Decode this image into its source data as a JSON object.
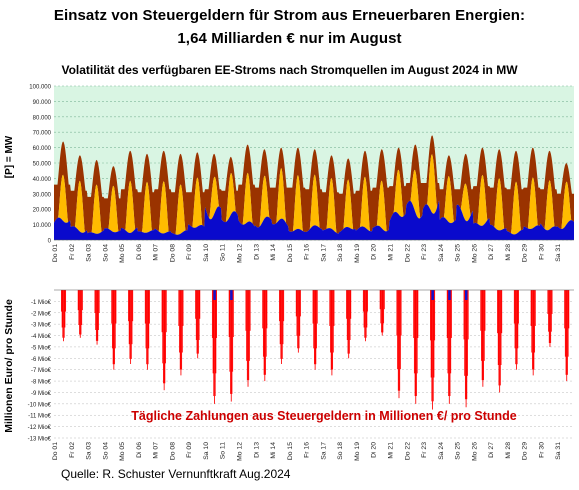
{
  "header": {
    "title_line1": "Einsatz von Steuergeldern für Strom aus Erneuerbaren Energien:",
    "title_line2": "1,64 Milliarden € nur im August"
  },
  "source": "Quelle: R. Schuster Vernunftkraft Aug.2024",
  "chart_data": [
    {
      "type": "area",
      "title": "Volatilität des verfügbaren EE-Stroms nach Stromquellen im August 2024 in MW",
      "ylabel": "[P] = MW",
      "ylim": [
        0,
        100000
      ],
      "yticks": [
        "0",
        "10.000",
        "20.000",
        "30.000",
        "40.000",
        "50.000",
        "60.000",
        "70.000",
        "80.000",
        "90.000",
        "100.000"
      ],
      "grid": true,
      "colors": {
        "background": "#d9f5e3",
        "wind": "#0a0acc",
        "solar": "#ffbb00",
        "other": "#9a3300"
      },
      "x": [
        "Do 01",
        "Fr 02",
        "Sa 03",
        "So 04",
        "Mo 05",
        "Di 06",
        "Mi 07",
        "Do 08",
        "Fr 09",
        "Sa 10",
        "So 11",
        "Mo 12",
        "Di 13",
        "Mi 14",
        "Do 15",
        "Fr 16",
        "Sa 17",
        "So 18",
        "Mo 19",
        "Di 20",
        "Mi 21",
        "Do 22",
        "Fr 23",
        "Sa 24",
        "So 25",
        "Mo 26",
        "Di 27",
        "Mi 28",
        "Do 29",
        "Fr 30",
        "Sa 31"
      ],
      "series": [
        {
          "values_daily_wind_MW": [
            14000,
            9000,
            6000,
            7000,
            9000,
            6000,
            7000,
            6000,
            10000,
            26000,
            17000,
            14000,
            16000,
            13000,
            9000,
            9000,
            8000,
            10000,
            8000,
            11000,
            19000,
            24000,
            29000,
            14000,
            24000,
            13000,
            9000,
            7000,
            9000,
            11000,
            12000
          ]
        },
        {
          "values_daily_solar_peak_MW": [
            30000,
            33000,
            32000,
            30000,
            34000,
            33000,
            34000,
            32000,
            32000,
            24000,
            27000,
            32000,
            28000,
            33000,
            35000,
            33000,
            33000,
            31000,
            33000,
            31000,
            29000,
            27000,
            38000,
            30000,
            24000,
            33000,
            34000,
            34000,
            33000,
            32000,
            28000
          ]
        },
        {
          "values_daily_peak_total_MW": [
            64000,
            55000,
            52000,
            48000,
            58000,
            56000,
            58000,
            56000,
            57000,
            56000,
            54000,
            62000,
            59000,
            60000,
            60000,
            59000,
            55000,
            53000,
            58000,
            59000,
            60000,
            62000,
            68000,
            55000,
            56000,
            60000,
            59000,
            58000,
            60000,
            58000,
            50000
          ]
        },
        {
          "values_daily_night_base_MW": [
            36000,
            32000,
            28000,
            27000,
            33000,
            31000,
            33000,
            31000,
            31000,
            33000,
            32000,
            36000,
            34000,
            34000,
            34000,
            33000,
            31000,
            30000,
            32000,
            34000,
            35000,
            37000,
            37000,
            33000,
            33000,
            35000,
            34000,
            33000,
            34000,
            33000,
            30000
          ]
        }
      ]
    },
    {
      "type": "bar",
      "ylabel": "Millionen Euro/ pro Stunde",
      "ylim": [
        -13,
        0
      ],
      "yticks": [
        "-1 Mio€",
        "-2 Mio€",
        "-3 Mio€",
        "-4 Mio€",
        "-5 Mio€",
        "-6 Mio€",
        "-7 Mio€",
        "-8 Mio€",
        "-9 Mio€",
        "-10 Mio€",
        "-11 Mio€",
        "-12 Mio€",
        "-13 Mio€"
      ],
      "annotation": "Tägliche Zahlungen aus Steuergeldern in Millionen €/ pro Stunde",
      "colors": {
        "negative": "#ff0000",
        "positive": "#1010cc",
        "annotation": "#cc0000"
      },
      "x": [
        "Do 01",
        "Fr 02",
        "Sa 03",
        "So 04",
        "Mo 05",
        "Di 06",
        "Mi 07",
        "Do 08",
        "Fr 09",
        "Sa 10",
        "So 11",
        "Mo 12",
        "Di 13",
        "Mi 14",
        "Do 15",
        "Fr 16",
        "Sa 17",
        "So 18",
        "Mo 19",
        "Di 20",
        "Mi 21",
        "Do 22",
        "Fr 23",
        "Sa 24",
        "So 25",
        "Mo 26",
        "Di 27",
        "Mi 28",
        "Do 29",
        "Fr 30",
        "Sa 31"
      ],
      "series": [
        {
          "name_hidden": "",
          "values_daily_min_Mio": [
            -4.5,
            -4.2,
            -4.8,
            -7.0,
            -6.5,
            -7.0,
            -8.8,
            -7.5,
            -6.0,
            -10.0,
            -9.8,
            -8.5,
            -8.0,
            -6.5,
            -5.5,
            -7.0,
            -7.5,
            -6.0,
            -4.5,
            -4.0,
            -9.5,
            -10.0,
            -10.5,
            -10.0,
            -10.3,
            -8.5,
            -9.0,
            -7.0,
            -7.5,
            -5.0,
            -8.0
          ]
        }
      ]
    }
  ]
}
